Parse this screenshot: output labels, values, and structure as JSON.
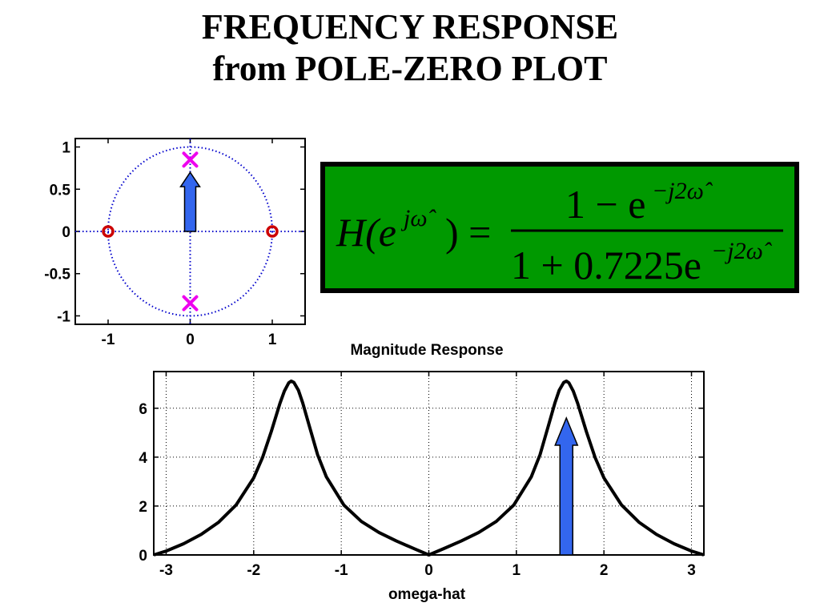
{
  "page": {
    "title_line1": "FREQUENCY RESPONSE",
    "title_line2": "from POLE-ZERO PLOT"
  },
  "equation": {
    "lhs": "H(e",
    "lhs_exp": "jω̂",
    "lhs_close": ") =",
    "num_text": "1 − e",
    "num_exp": "−j2ω̂",
    "den_text": "1 + 0.7225e",
    "den_exp": "−j2ω̂",
    "background": "#009900"
  },
  "chart_data": [
    {
      "type": "scatter",
      "title": "",
      "xlabel": "",
      "ylabel": "",
      "xlim": [
        -1.4,
        1.4
      ],
      "ylim": [
        -1.1,
        1.1
      ],
      "x_ticks": [
        -1,
        0,
        1
      ],
      "y_ticks": [
        1,
        0.5,
        0,
        -0.5,
        -1
      ],
      "x_tick_labels": [
        "-1",
        "0",
        "1"
      ],
      "y_tick_labels": [
        "1",
        "0.5",
        "0",
        "-0.5",
        "-1"
      ],
      "unit_circle": true,
      "axes_lines": true,
      "zeros": [
        [
          -1,
          0
        ],
        [
          1,
          0
        ]
      ],
      "poles": [
        [
          0,
          0.85
        ],
        [
          0,
          -0.85
        ]
      ],
      "arrow": {
        "from": [
          0,
          0
        ],
        "to": [
          0,
          0.7
        ]
      },
      "colors": {
        "zero": "#cc0000",
        "pole": "#ee00ee",
        "circle": "#0000cc",
        "arrow": "#3366ee"
      }
    },
    {
      "type": "line",
      "title": "Magnitude Response",
      "xlabel": "omega-hat",
      "ylabel": "",
      "xlim": [
        -3.14159,
        3.14159
      ],
      "ylim": [
        0,
        7.5
      ],
      "x_ticks": [
        -3,
        -2,
        -1,
        0,
        1,
        2,
        3
      ],
      "y_ticks": [
        0,
        2,
        4,
        6
      ],
      "x_tick_labels": [
        "-3",
        "-2",
        "-1",
        "0",
        "1",
        "2",
        "3"
      ],
      "y_tick_labels": [
        "0",
        "2",
        "4",
        "6"
      ],
      "grid": true,
      "x": [
        -3.14159,
        -3.0,
        -2.8,
        -2.6,
        -2.4,
        -2.2,
        -2.0,
        -1.9,
        -1.8,
        -1.7,
        -1.65,
        -1.6,
        -1.5708,
        -1.54,
        -1.49,
        -1.44,
        -1.37,
        -1.27,
        -1.17,
        -0.97,
        -0.77,
        -0.57,
        -0.37,
        -0.17,
        0.0,
        0.17,
        0.37,
        0.57,
        0.77,
        0.97,
        1.17,
        1.27,
        1.37,
        1.44,
        1.49,
        1.54,
        1.5708,
        1.6,
        1.65,
        1.7,
        1.8,
        1.9,
        2.0,
        2.2,
        2.4,
        2.6,
        2.8,
        3.0,
        3.14159
      ],
      "values": [
        0.0,
        0.16,
        0.46,
        0.84,
        1.34,
        2.05,
        3.15,
        3.98,
        5.04,
        6.2,
        6.7,
        7.04,
        7.11,
        7.05,
        6.74,
        6.21,
        5.34,
        4.1,
        3.19,
        2.04,
        1.37,
        0.92,
        0.57,
        0.26,
        0.0,
        0.26,
        0.57,
        0.92,
        1.37,
        2.04,
        3.19,
        4.1,
        5.34,
        6.21,
        6.74,
        7.05,
        7.11,
        7.04,
        6.7,
        6.2,
        5.04,
        3.98,
        3.15,
        2.05,
        1.34,
        0.84,
        0.46,
        0.16,
        0.0
      ],
      "arrow": {
        "x": 1.5708,
        "from": 0,
        "to": 5.6
      },
      "colors": {
        "line": "#000000",
        "arrow": "#3366ee"
      }
    }
  ]
}
